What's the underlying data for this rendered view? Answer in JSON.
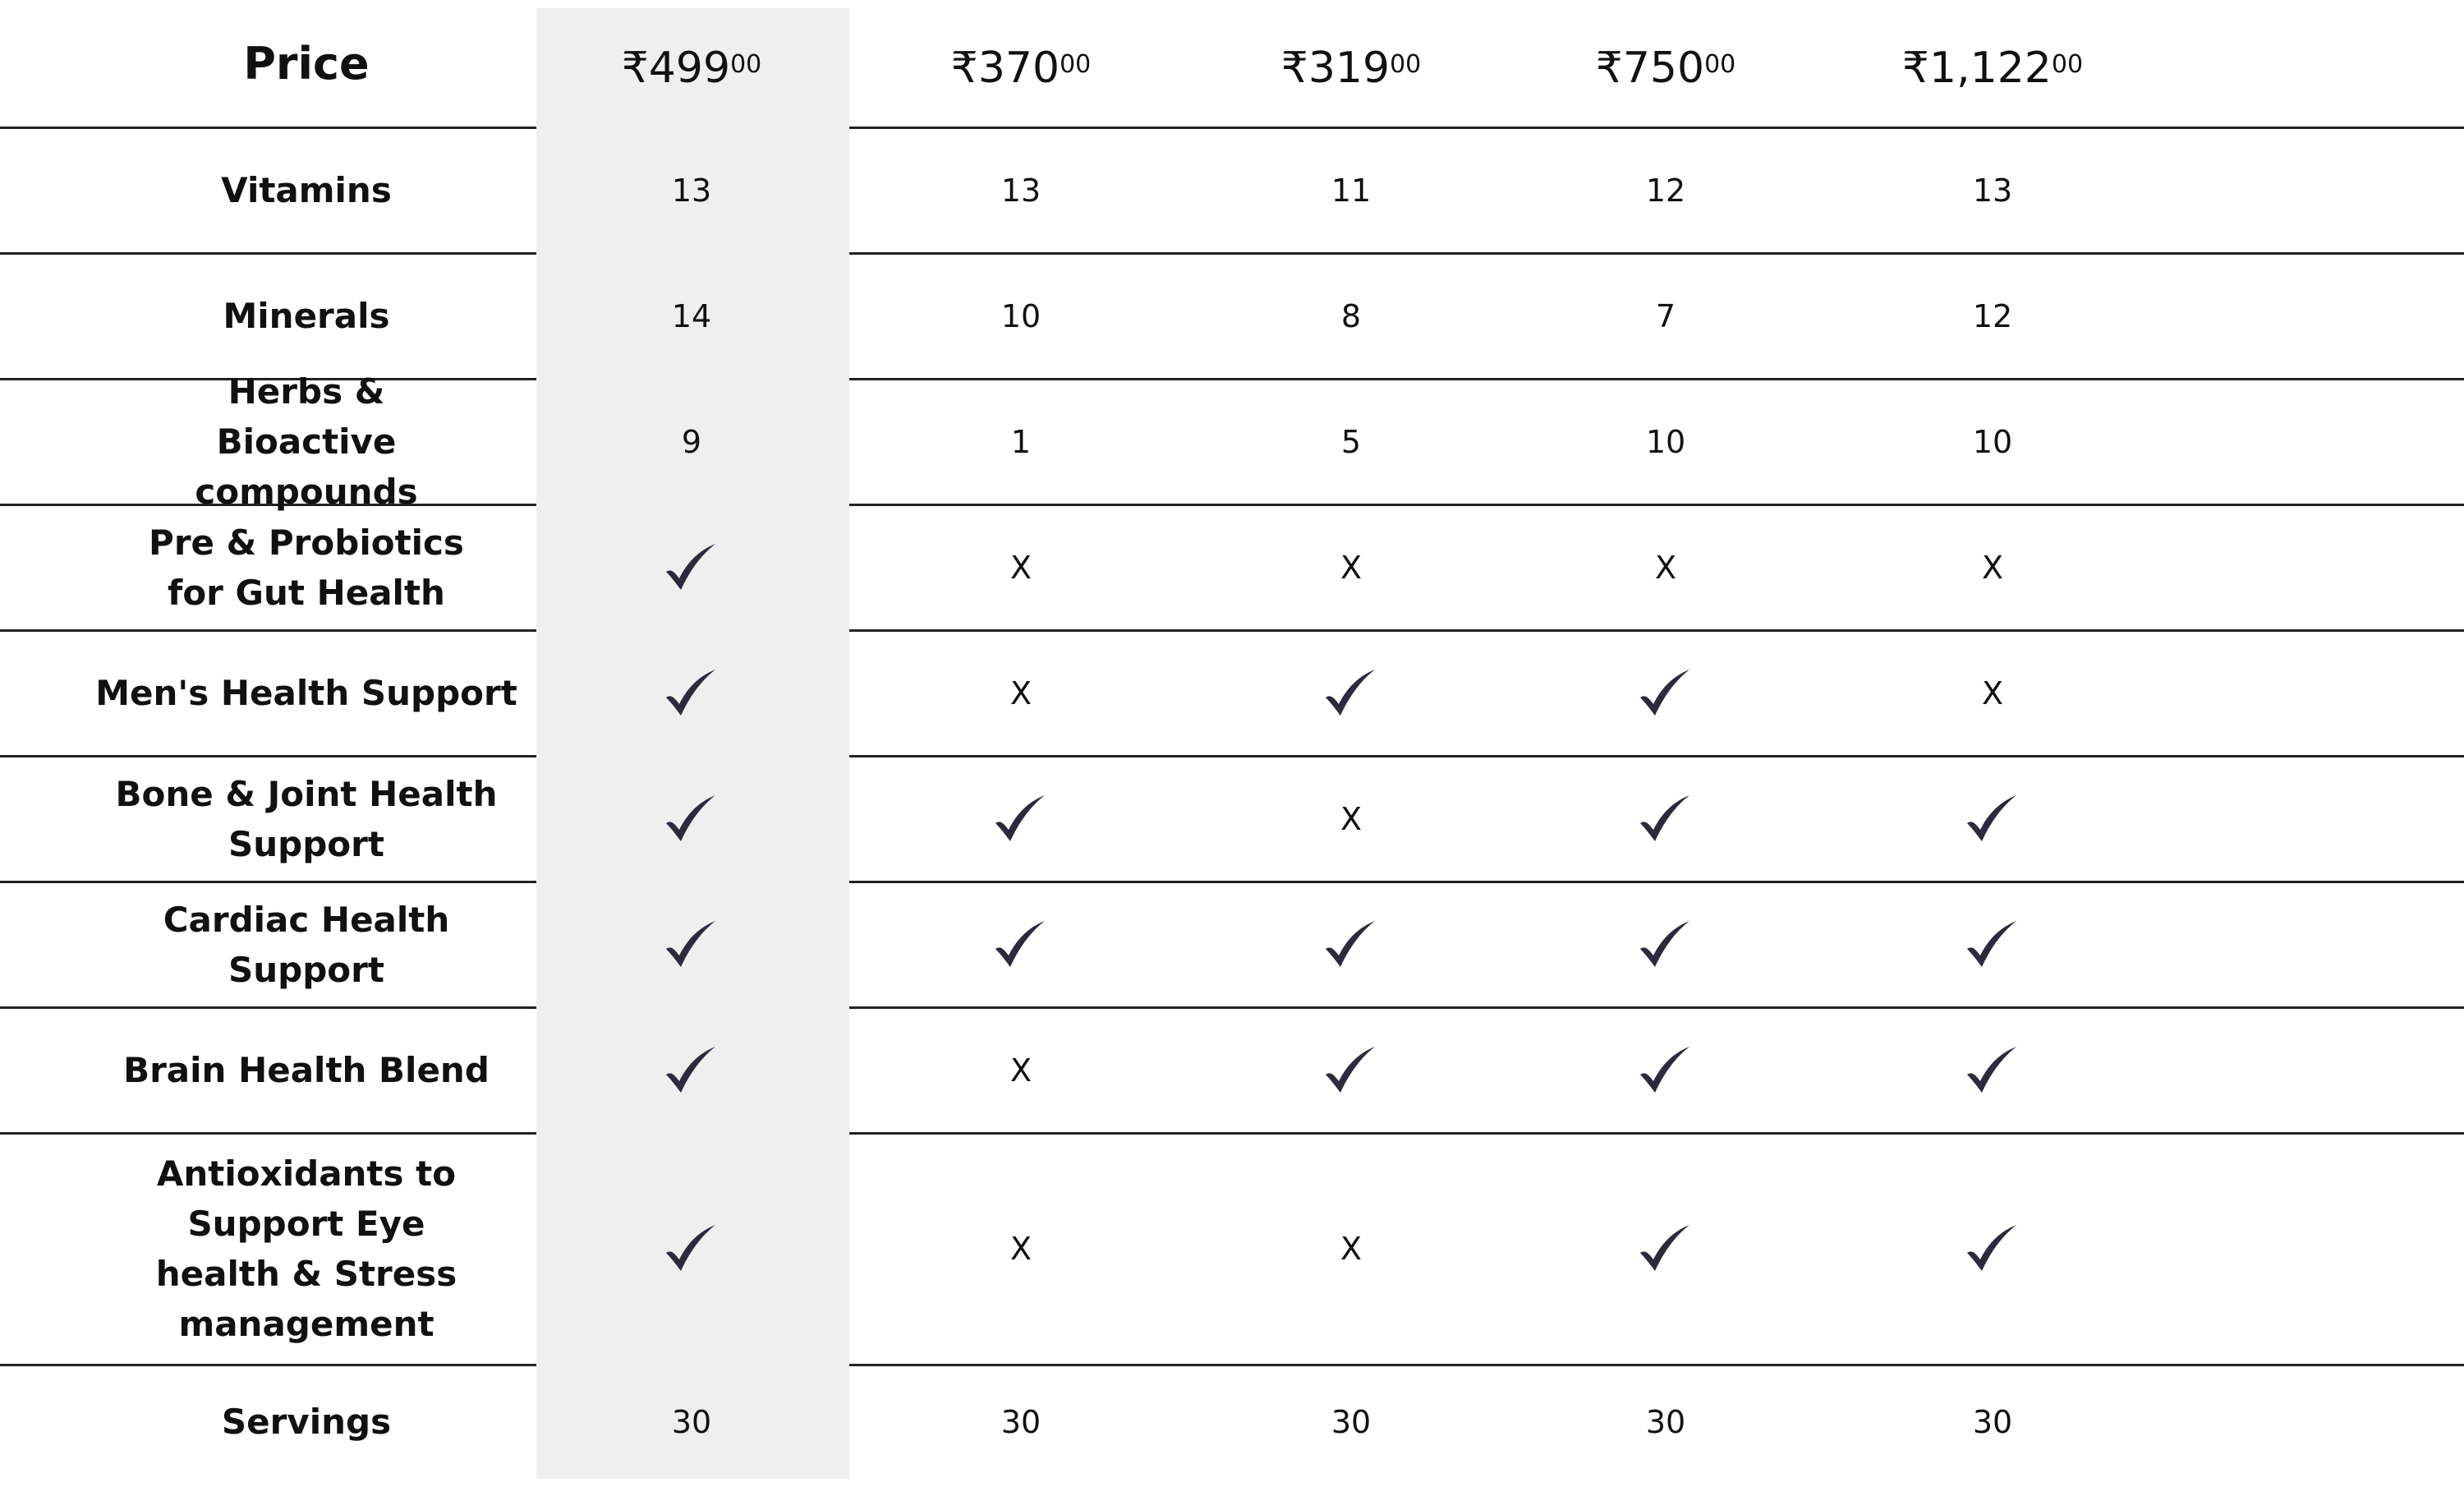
{
  "header": {
    "label": "Price",
    "prices": [
      {
        "symbol": "₹",
        "main": "499",
        "fraction": "00"
      },
      {
        "symbol": "₹",
        "main": "370",
        "fraction": "00"
      },
      {
        "symbol": "₹",
        "main": "319",
        "fraction": "00"
      },
      {
        "symbol": "₹",
        "main": "750",
        "fraction": "00"
      },
      {
        "symbol": "₹",
        "main": "1,122",
        "fraction": "00"
      }
    ]
  },
  "highlight_color": "#efefef",
  "check_color": "#2d2a3e",
  "rows": [
    {
      "label": "Vitamins",
      "values": [
        "13",
        "13",
        "11",
        "12",
        "13"
      ]
    },
    {
      "label": "Minerals",
      "values": [
        "14",
        "10",
        "8",
        "7",
        "12"
      ]
    },
    {
      "label": "Herbs & Bioactive compounds",
      "values": [
        "9",
        "1",
        "5",
        "10",
        "10"
      ]
    },
    {
      "label": "Pre & Probiotics for Gut Health",
      "values": [
        "check",
        "X",
        "X",
        "X",
        "X"
      ]
    },
    {
      "label": "Men's Health Support",
      "values": [
        "check",
        "X",
        "check",
        "check",
        "X"
      ]
    },
    {
      "label": "Bone & Joint Health Support",
      "values": [
        "check",
        "check",
        "X",
        "check",
        "check"
      ]
    },
    {
      "label": "Cardiac Health Support",
      "values": [
        "check",
        "check",
        "check",
        "check",
        "check"
      ]
    },
    {
      "label": "Brain Health Blend",
      "values": [
        "check",
        "X",
        "check",
        "check",
        "check"
      ]
    },
    {
      "label": "Antioxidants to Support Eye health & Stress management",
      "values": [
        "check",
        "X",
        "X",
        "check",
        "check"
      ]
    },
    {
      "label": "Servings",
      "values": [
        "30",
        "30",
        "30",
        "30",
        "30"
      ]
    }
  ]
}
